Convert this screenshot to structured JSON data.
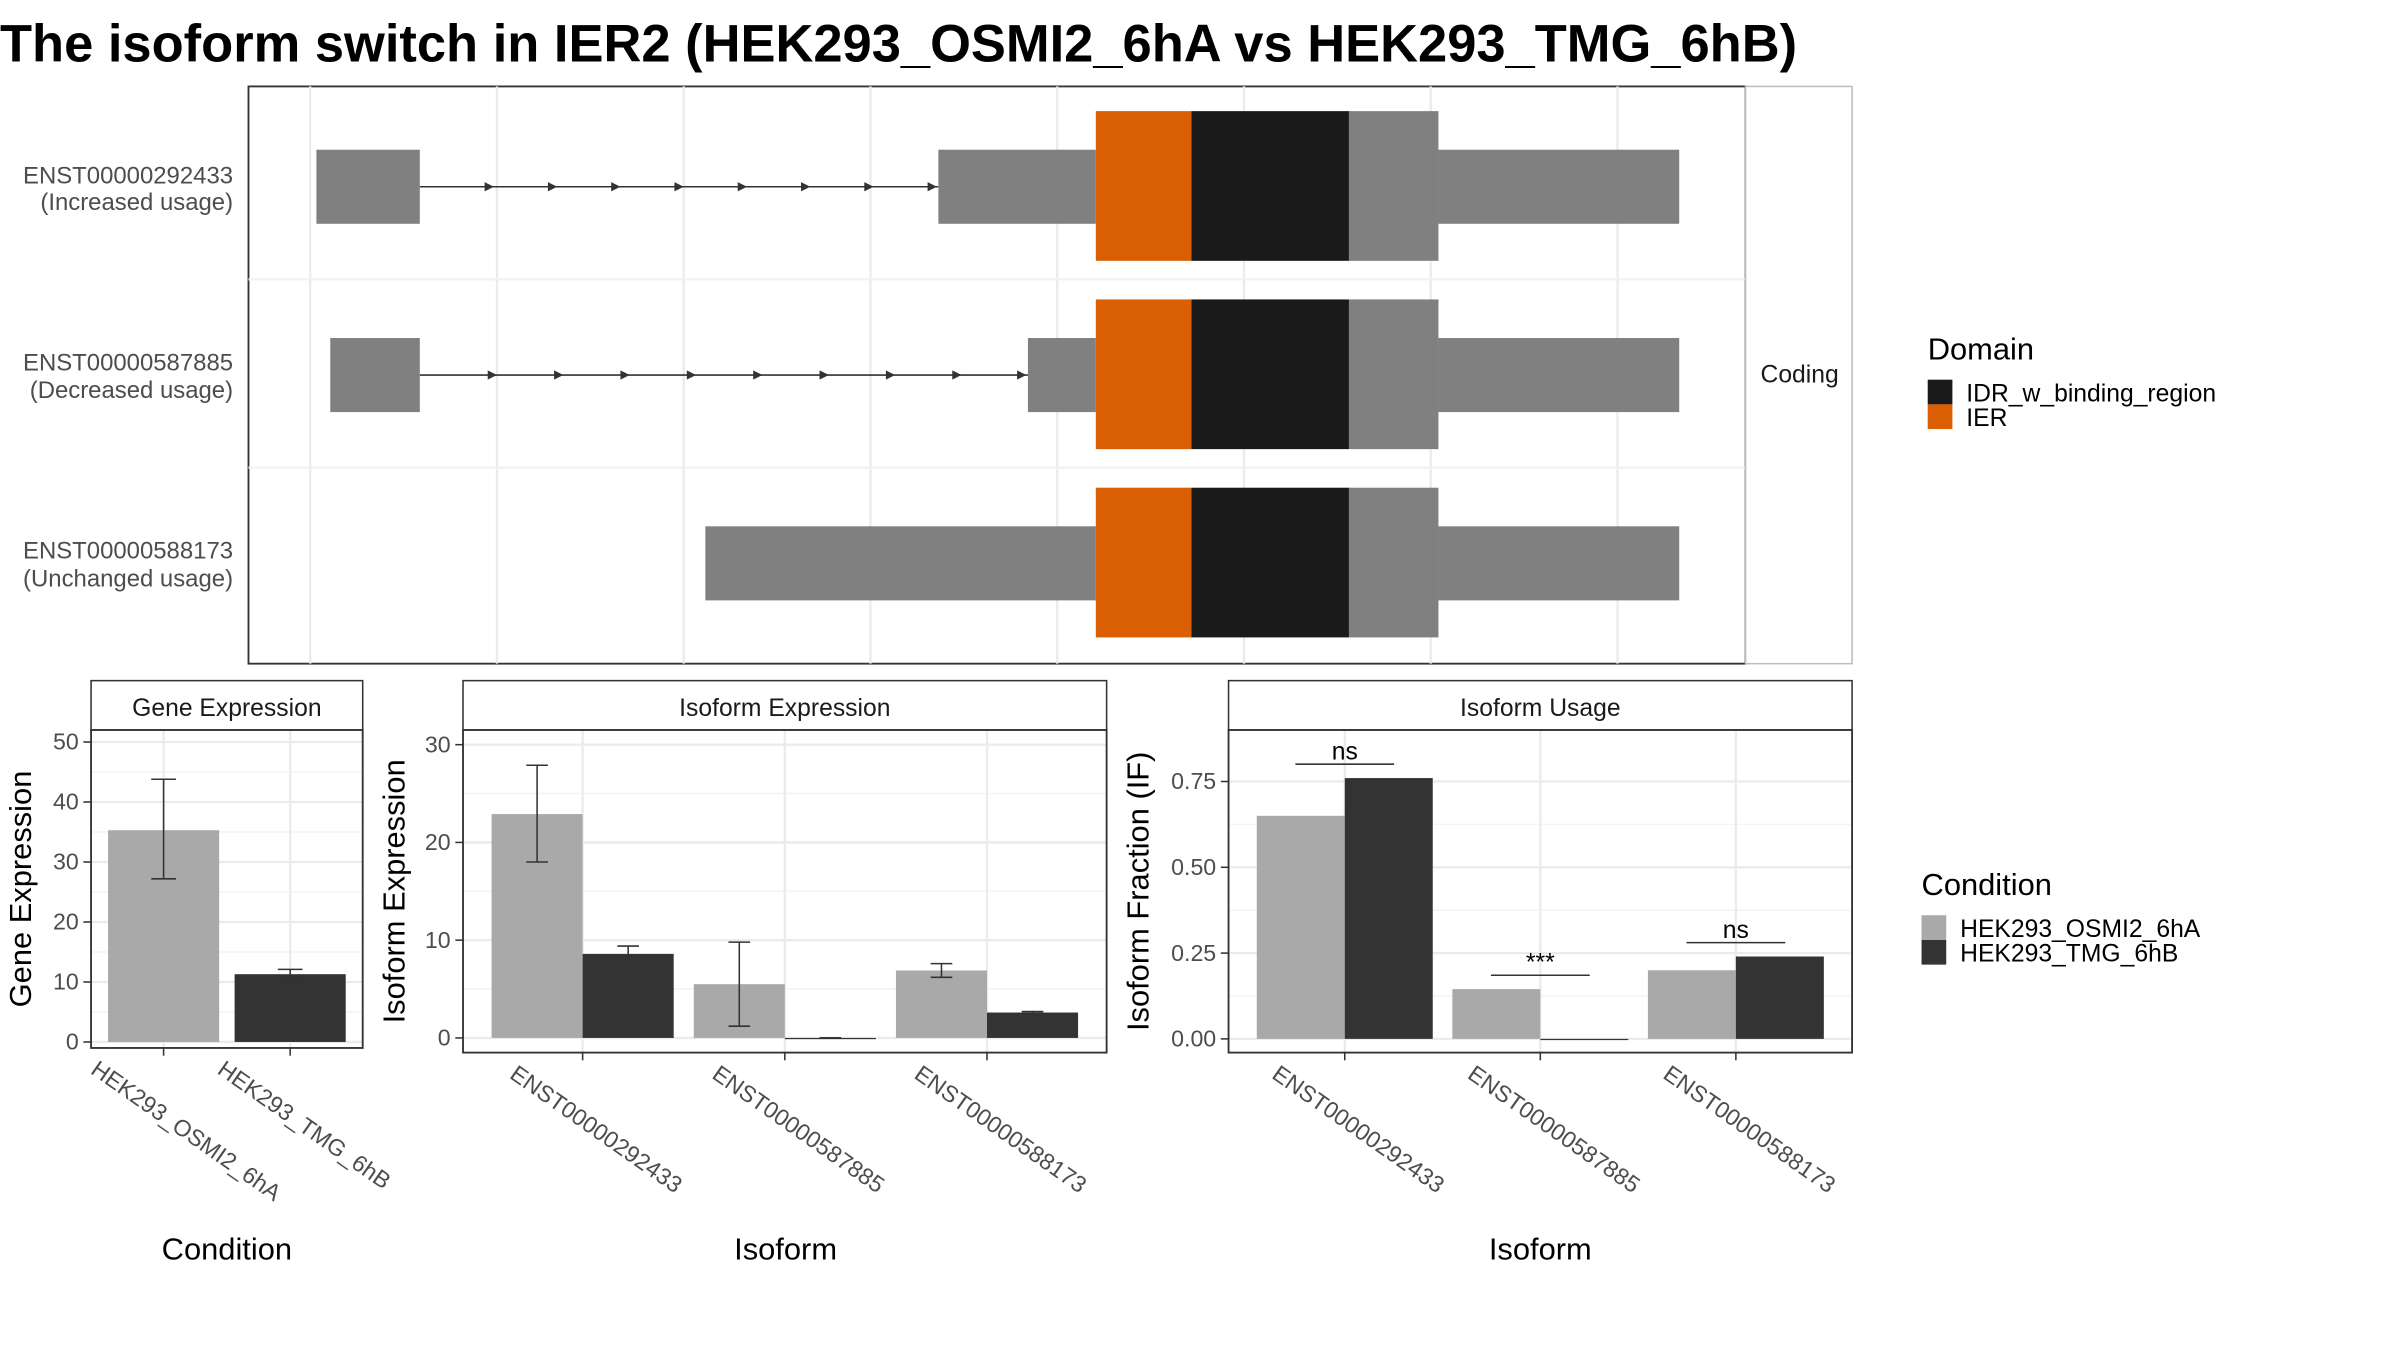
{
  "title": "The isoform switch in IER2 (HEK293_OSMI2_6hA vs HEK293_TMG_6hB)",
  "colors": {
    "IDR_w_binding_region": "#1a1a1a",
    "IER": "#d95f02",
    "exon": "#808080",
    "cond1": "#a9a9a9",
    "cond2": "#333333"
  },
  "structure": {
    "strip_label": "Coding",
    "transcripts": [
      {
        "label": "ENST00000292433",
        "sublabel": "(Increased usage)"
      },
      {
        "label": "ENST00000587885",
        "sublabel": "(Decreased usage)"
      },
      {
        "label": "ENST00000588173",
        "sublabel": "(Unchanged usage)"
      }
    ]
  },
  "legend_domain": {
    "title": "Domain",
    "items": [
      {
        "label": "IDR_w_binding_region",
        "color": "#1a1a1a"
      },
      {
        "label": "IER",
        "color": "#d95f02"
      }
    ]
  },
  "legend_condition": {
    "title": "Condition",
    "items": [
      {
        "label": "HEK293_OSMI2_6hA",
        "color": "#a9a9a9"
      },
      {
        "label": "HEK293_TMG_6hB",
        "color": "#333333"
      }
    ]
  },
  "chart_data": [
    {
      "type": "bar",
      "title": "Gene Expression",
      "xlabel": "Condition",
      "ylabel": "Gene Expression",
      "ylim": [
        -1,
        52
      ],
      "yticks": [
        0,
        10,
        20,
        30,
        40,
        50
      ],
      "categories": [
        "HEK293_OSMI2_6hA",
        "HEK293_TMG_6hB"
      ],
      "values": [
        35.3,
        11.3
      ],
      "errors": [
        [
          27.2,
          43.8
        ],
        [
          10.5,
          12.1
        ]
      ]
    },
    {
      "type": "bar",
      "title": "Isoform Expression",
      "xlabel": "Isoform",
      "ylabel": "Isoform Expression",
      "ylim": [
        -1.5,
        31.5
      ],
      "yticks": [
        0,
        10,
        20,
        30
      ],
      "categories": [
        "ENST00000292433",
        "ENST00000587885",
        "ENST00000588173"
      ],
      "series": [
        {
          "name": "HEK293_OSMI2_6hA",
          "values": [
            22.9,
            5.5,
            6.9
          ],
          "errors": [
            [
              18.0,
              27.9
            ],
            [
              1.2,
              9.8
            ],
            [
              6.2,
              7.6
            ]
          ]
        },
        {
          "name": "HEK293_TMG_6hB",
          "values": [
            8.6,
            0.0,
            2.6
          ],
          "errors": [
            [
              7.8,
              9.4
            ],
            [
              0.0,
              0.0
            ],
            [
              2.5,
              2.7
            ]
          ]
        }
      ]
    },
    {
      "type": "bar",
      "title": "Isoform Usage",
      "xlabel": "Isoform",
      "ylabel": "Isoform Fraction (IF)",
      "ylim": [
        -0.04,
        0.9
      ],
      "yticks": [
        0.0,
        0.25,
        0.5,
        0.75
      ],
      "ytick_labels": [
        "0.00",
        "0.25",
        "0.50",
        "0.75"
      ],
      "categories": [
        "ENST00000292433",
        "ENST00000587885",
        "ENST00000588173"
      ],
      "series": [
        {
          "name": "HEK293_OSMI2_6hA",
          "values": [
            0.65,
            0.145,
            0.2
          ]
        },
        {
          "name": "HEK293_TMG_6hB",
          "values": [
            0.76,
            0.0,
            0.24
          ]
        }
      ],
      "significance": [
        "ns",
        "***",
        "ns"
      ]
    }
  ]
}
